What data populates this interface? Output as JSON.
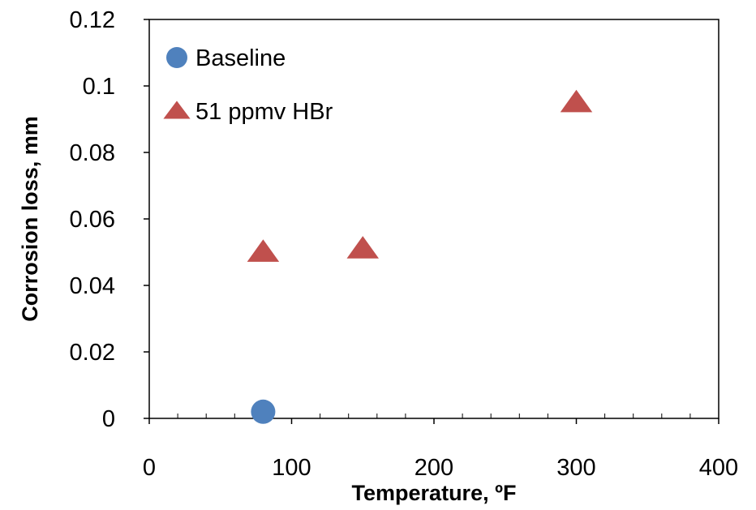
{
  "chart_data": {
    "type": "scatter",
    "title": "",
    "xlabel": "Temperature, ºF",
    "ylabel": "Corrosion loss, mm",
    "xlim": [
      0,
      400
    ],
    "ylim": [
      0,
      0.12
    ],
    "x_ticks": [
      "0",
      "100",
      "200",
      "300",
      "400"
    ],
    "y_ticks": [
      "0",
      "0.02",
      "0.04",
      "0.06",
      "0.08",
      "0.1",
      "0.12"
    ],
    "grid": false,
    "legend_position": "top-left",
    "series": [
      {
        "name": "Baseline",
        "marker": "circle",
        "color": "#4f81bd",
        "points": [
          {
            "x": 80,
            "y": 0.002
          }
        ]
      },
      {
        "name": "51 ppmv HBr",
        "marker": "triangle",
        "color": "#c0504d",
        "points": [
          {
            "x": 80,
            "y": 0.05
          },
          {
            "x": 150,
            "y": 0.051
          },
          {
            "x": 300,
            "y": 0.095
          }
        ]
      }
    ]
  }
}
